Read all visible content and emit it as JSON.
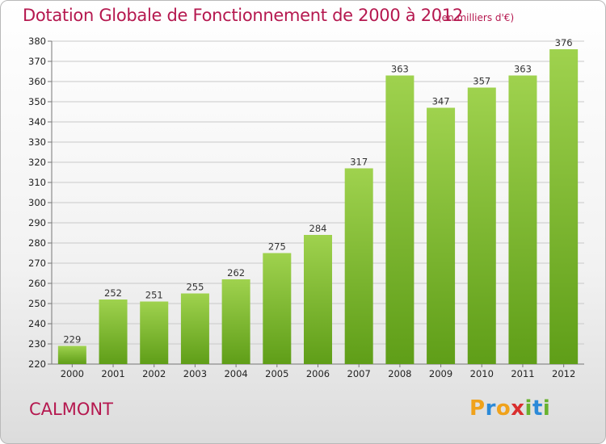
{
  "title": "Dotation Globale de Fonctionnement de 2000 à 2012",
  "subtitle": "(en milliers d'€)",
  "place": "CALMONT",
  "logo": {
    "text": "Proxiti",
    "letters": [
      {
        "ch": "P",
        "color": "#f0a21b"
      },
      {
        "ch": "r",
        "color": "#2c8ad8"
      },
      {
        "ch": "o",
        "color": "#f0a21b"
      },
      {
        "ch": "x",
        "color": "#d92e2e"
      },
      {
        "ch": "i",
        "color": "#68b22e"
      },
      {
        "ch": "t",
        "color": "#2c8ad8"
      },
      {
        "ch": "i",
        "color": "#68b22e"
      }
    ]
  },
  "colors": {
    "title": "#b5184f",
    "bar_light": "#9fd24e",
    "bar_dark": "#5f9e18",
    "grid": "#c9c9c9"
  },
  "chart_data": {
    "type": "bar",
    "categories": [
      "2000",
      "2001",
      "2002",
      "2003",
      "2004",
      "2005",
      "2006",
      "2007",
      "2008",
      "2009",
      "2010",
      "2011",
      "2012"
    ],
    "values": [
      229,
      252,
      251,
      255,
      262,
      275,
      284,
      317,
      363,
      347,
      357,
      363,
      376
    ],
    "ylim": [
      220,
      380
    ],
    "yticks": [
      220,
      230,
      240,
      250,
      260,
      270,
      280,
      290,
      300,
      310,
      320,
      330,
      340,
      350,
      360,
      370,
      380
    ],
    "grid": true,
    "xlabel": "",
    "ylabel": ""
  }
}
